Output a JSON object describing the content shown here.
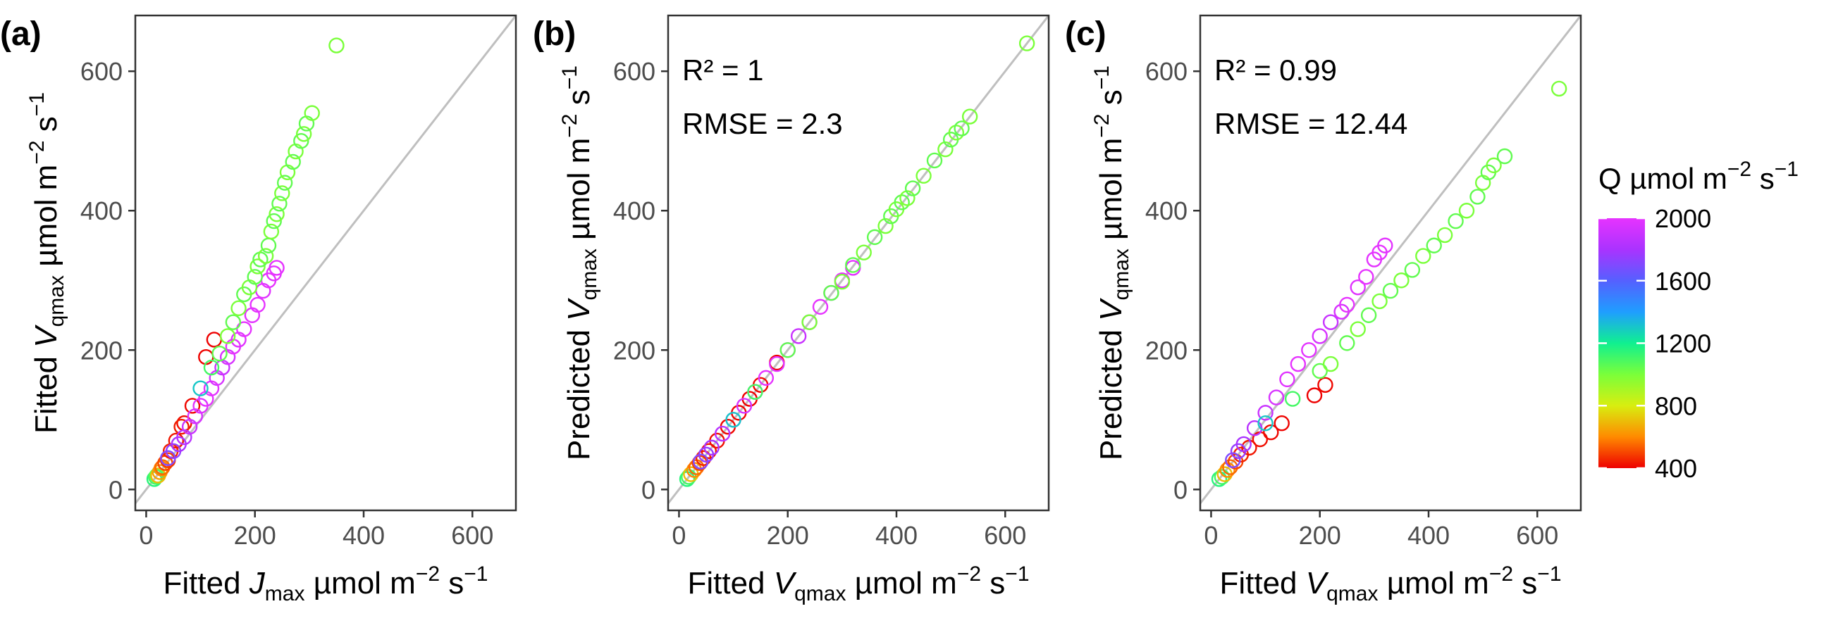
{
  "chart_data": [
    {
      "panel": "(a)",
      "type": "scatter",
      "xlabel": {
        "main": "Fitted ",
        "italic": "J",
        "sub": "max",
        "unit": " µmol m",
        "exp1": "−2",
        "mid": " s",
        "exp2": "−1"
      },
      "ylabel": {
        "main": "Fitted ",
        "italic": "V",
        "sub": "qmax",
        "unit": " µmol m",
        "exp1": "−2",
        "mid": " s",
        "exp2": "−1"
      },
      "xlim": [
        -20,
        680
      ],
      "ylim": [
        -30,
        680
      ],
      "xticks": [
        0,
        200,
        400,
        600
      ],
      "yticks": [
        0,
        200,
        400,
        600
      ],
      "identity_line": true,
      "stats": null,
      "points": [
        [
          15,
          15,
          1150
        ],
        [
          18,
          18,
          1100
        ],
        [
          20,
          20,
          1050
        ],
        [
          22,
          20,
          700
        ],
        [
          25,
          25,
          650
        ],
        [
          28,
          30,
          600
        ],
        [
          30,
          32,
          550
        ],
        [
          35,
          38,
          500
        ],
        [
          40,
          42,
          480
        ],
        [
          45,
          55,
          450
        ],
        [
          55,
          70,
          430
        ],
        [
          70,
          95,
          420
        ],
        [
          85,
          120,
          410
        ],
        [
          110,
          190,
          405
        ],
        [
          125,
          215,
          400
        ],
        [
          65,
          90,
          440
        ],
        [
          40,
          45,
          1700
        ],
        [
          50,
          55,
          1750
        ],
        [
          60,
          65,
          1800
        ],
        [
          70,
          75,
          1850
        ],
        [
          80,
          90,
          1900
        ],
        [
          90,
          105,
          1950
        ],
        [
          100,
          120,
          1980
        ],
        [
          110,
          130,
          2000
        ],
        [
          120,
          145,
          1990
        ],
        [
          130,
          160,
          1950
        ],
        [
          140,
          175,
          1900
        ],
        [
          150,
          190,
          1950
        ],
        [
          160,
          205,
          2000
        ],
        [
          170,
          215,
          1980
        ],
        [
          180,
          230,
          2000
        ],
        [
          195,
          250,
          1990
        ],
        [
          205,
          265,
          2000
        ],
        [
          215,
          285,
          1980
        ],
        [
          225,
          300,
          2000
        ],
        [
          235,
          310,
          1990
        ],
        [
          240,
          318,
          2000
        ],
        [
          100,
          145,
          1300
        ],
        [
          120,
          175,
          1100
        ],
        [
          135,
          195,
          1050
        ],
        [
          150,
          220,
          1000
        ],
        [
          160,
          240,
          1050
        ],
        [
          170,
          260,
          1000
        ],
        [
          180,
          280,
          1050
        ],
        [
          190,
          290,
          1000
        ],
        [
          200,
          305,
          1050
        ],
        [
          205,
          320,
          1000
        ],
        [
          210,
          330,
          1050
        ],
        [
          220,
          335,
          1000
        ],
        [
          225,
          350,
          1050
        ],
        [
          230,
          370,
          1000
        ],
        [
          235,
          385,
          1050
        ],
        [
          240,
          395,
          1000
        ],
        [
          245,
          410,
          1050
        ],
        [
          250,
          425,
          1000
        ],
        [
          255,
          440,
          1050
        ],
        [
          260,
          455,
          1000
        ],
        [
          270,
          470,
          1050
        ],
        [
          275,
          485,
          1000
        ],
        [
          285,
          500,
          1050
        ],
        [
          290,
          510,
          1000
        ],
        [
          295,
          525,
          1050
        ],
        [
          305,
          540,
          1000
        ],
        [
          350,
          637,
          1000
        ]
      ]
    },
    {
      "panel": "(b)",
      "type": "scatter",
      "xlabel": {
        "main": "Fitted ",
        "italic": "V",
        "sub": "qmax",
        "unit": " µmol m",
        "exp1": "−2",
        "mid": " s",
        "exp2": "−1"
      },
      "ylabel": {
        "main": "Predicted ",
        "italic": "V",
        "sub": "qmax",
        "unit": " µmol m",
        "exp1": "−2",
        "mid": " s",
        "exp2": "−1"
      },
      "xlim": [
        -20,
        680
      ],
      "ylim": [
        -30,
        680
      ],
      "xticks": [
        0,
        200,
        400,
        600
      ],
      "yticks": [
        0,
        200,
        400,
        600
      ],
      "identity_line": true,
      "stats": {
        "r2": "R² = 1",
        "rmse": "RMSE = 2.3"
      },
      "points": [
        [
          15,
          15,
          1150
        ],
        [
          18,
          18,
          1100
        ],
        [
          22,
          22,
          700
        ],
        [
          28,
          28,
          600
        ],
        [
          32,
          32,
          550
        ],
        [
          38,
          38,
          500
        ],
        [
          45,
          45,
          450
        ],
        [
          55,
          55,
          430
        ],
        [
          70,
          70,
          420
        ],
        [
          90,
          90,
          410
        ],
        [
          110,
          110,
          405
        ],
        [
          130,
          130,
          400
        ],
        [
          150,
          150,
          410
        ],
        [
          180,
          182,
          405
        ],
        [
          40,
          40,
          1700
        ],
        [
          50,
          50,
          1750
        ],
        [
          60,
          60,
          1800
        ],
        [
          80,
          80,
          1850
        ],
        [
          100,
          100,
          1900
        ],
        [
          120,
          120,
          1950
        ],
        [
          140,
          140,
          1980
        ],
        [
          160,
          160,
          2000
        ],
        [
          180,
          180,
          1990
        ],
        [
          200,
          200,
          1950
        ],
        [
          220,
          220,
          1900
        ],
        [
          240,
          240,
          1950
        ],
        [
          260,
          262,
          2000
        ],
        [
          280,
          282,
          1980
        ],
        [
          300,
          300,
          2000
        ],
        [
          320,
          318,
          1990
        ],
        [
          100,
          100,
          1300
        ],
        [
          140,
          140,
          1100
        ],
        [
          200,
          200,
          1050
        ],
        [
          240,
          240,
          1000
        ],
        [
          280,
          282,
          1050
        ],
        [
          300,
          298,
          1000
        ],
        [
          320,
          322,
          1050
        ],
        [
          340,
          340,
          1000
        ],
        [
          360,
          362,
          1050
        ],
        [
          380,
          378,
          1000
        ],
        [
          390,
          392,
          1050
        ],
        [
          400,
          402,
          1000
        ],
        [
          410,
          412,
          1050
        ],
        [
          420,
          418,
          1000
        ],
        [
          430,
          432,
          1050
        ],
        [
          450,
          450,
          1000
        ],
        [
          470,
          472,
          1050
        ],
        [
          490,
          488,
          1000
        ],
        [
          500,
          502,
          1050
        ],
        [
          510,
          512,
          1000
        ],
        [
          520,
          518,
          1050
        ],
        [
          535,
          535,
          1000
        ],
        [
          640,
          640,
          1000
        ]
      ]
    },
    {
      "panel": "(c)",
      "type": "scatter",
      "xlabel": {
        "main": "Fitted ",
        "italic": "V",
        "sub": "qmax",
        "unit": " µmol m",
        "exp1": "−2",
        "mid": " s",
        "exp2": "−1"
      },
      "ylabel": {
        "main": "Predicted ",
        "italic": "V",
        "sub": "qmax",
        "unit": " µmol m",
        "exp1": "−2",
        "mid": " s",
        "exp2": "−1"
      },
      "xlim": [
        -20,
        680
      ],
      "ylim": [
        -30,
        680
      ],
      "xticks": [
        0,
        200,
        400,
        600
      ],
      "yticks": [
        0,
        200,
        400,
        600
      ],
      "identity_line": true,
      "stats": {
        "r2": "R² = 0.99",
        "rmse": "RMSE = 12.44"
      },
      "points": [
        [
          15,
          15,
          1150
        ],
        [
          20,
          18,
          1100
        ],
        [
          25,
          22,
          700
        ],
        [
          30,
          28,
          600
        ],
        [
          35,
          32,
          550
        ],
        [
          45,
          40,
          500
        ],
        [
          55,
          50,
          450
        ],
        [
          70,
          60,
          430
        ],
        [
          90,
          72,
          420
        ],
        [
          110,
          82,
          410
        ],
        [
          130,
          95,
          405
        ],
        [
          190,
          135,
          400
        ],
        [
          210,
          150,
          410
        ],
        [
          40,
          42,
          1700
        ],
        [
          50,
          55,
          1750
        ],
        [
          60,
          65,
          1800
        ],
        [
          80,
          88,
          1850
        ],
        [
          100,
          110,
          1900
        ],
        [
          120,
          132,
          1950
        ],
        [
          140,
          158,
          1980
        ],
        [
          160,
          180,
          2000
        ],
        [
          180,
          200,
          1990
        ],
        [
          200,
          220,
          1950
        ],
        [
          220,
          240,
          1900
        ],
        [
          240,
          255,
          1950
        ],
        [
          250,
          265,
          2000
        ],
        [
          270,
          290,
          1980
        ],
        [
          285,
          305,
          2000
        ],
        [
          300,
          330,
          1990
        ],
        [
          310,
          340,
          2000
        ],
        [
          320,
          350,
          1990
        ],
        [
          100,
          95,
          1300
        ],
        [
          150,
          130,
          1100
        ],
        [
          200,
          170,
          1050
        ],
        [
          220,
          180,
          1000
        ],
        [
          250,
          210,
          1050
        ],
        [
          270,
          230,
          1000
        ],
        [
          290,
          250,
          1050
        ],
        [
          310,
          270,
          1000
        ],
        [
          330,
          285,
          1050
        ],
        [
          350,
          300,
          1000
        ],
        [
          370,
          315,
          1050
        ],
        [
          390,
          335,
          1000
        ],
        [
          410,
          350,
          1050
        ],
        [
          430,
          365,
          1000
        ],
        [
          450,
          385,
          1050
        ],
        [
          470,
          400,
          1000
        ],
        [
          490,
          420,
          1050
        ],
        [
          500,
          440,
          1000
        ],
        [
          510,
          455,
          1050
        ],
        [
          520,
          465,
          1000
        ],
        [
          540,
          478,
          1050
        ],
        [
          640,
          575,
          1000
        ]
      ]
    }
  ],
  "legend": {
    "title_prefix": "Q ",
    "title_unit": "µmol m",
    "title_exp1": "−2",
    "title_mid": " s",
    "title_exp2": "−1",
    "ticks": [
      2000,
      1600,
      1200,
      800,
      400
    ],
    "range": [
      400,
      2000
    ],
    "colors": [
      "#ee0000",
      "#ff8a00",
      "#d8ee10",
      "#7aff3a",
      "#10f090",
      "#1f9eff",
      "#5560ff",
      "#aa33ff",
      "#e633ff"
    ]
  },
  "colors": {
    "identity": "#bfbfbf",
    "frame": "#333333"
  }
}
